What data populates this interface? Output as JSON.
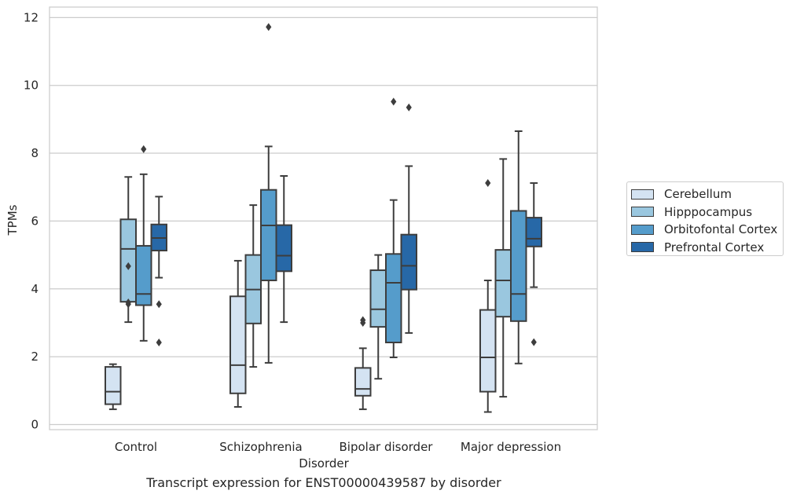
{
  "chart_data": {
    "type": "box",
    "xlabel": "Disorder",
    "ylabel": "TPMs",
    "caption": "Transcript expression for ENST00000439587 by disorder",
    "categories": [
      "Control",
      "Schizophrenia",
      "Bipolar disorder",
      "Major depression"
    ],
    "ylim": [
      -0.15,
      12.3
    ],
    "yticks": [
      0,
      2,
      4,
      6,
      8,
      10,
      12
    ],
    "grid": "horizontal",
    "legend_position": "right",
    "series": [
      {
        "name": "Cerebellum",
        "color": "#d4e3f2",
        "boxes": [
          {
            "min": 0.45,
            "q1": 0.6,
            "median": 0.97,
            "q3": 1.7,
            "max": 1.78,
            "outliers": []
          },
          {
            "min": 0.52,
            "q1": 0.92,
            "median": 1.75,
            "q3": 3.78,
            "max": 4.83,
            "outliers": []
          },
          {
            "min": 0.45,
            "q1": 0.85,
            "median": 1.05,
            "q3": 1.67,
            "max": 2.25,
            "outliers": [
              3.0,
              3.08
            ]
          },
          {
            "min": 0.37,
            "q1": 0.97,
            "median": 1.98,
            "q3": 3.38,
            "max": 4.25,
            "outliers": [
              7.12
            ]
          }
        ]
      },
      {
        "name": "Hipppocampus",
        "color": "#9ac7df",
        "boxes": [
          {
            "min": 3.02,
            "q1": 3.62,
            "median": 5.18,
            "q3": 6.05,
            "max": 7.3,
            "outliers": [
              3.55,
              3.6,
              4.67
            ]
          },
          {
            "min": 1.7,
            "q1": 2.98,
            "median": 3.98,
            "q3": 5.0,
            "max": 6.47,
            "outliers": []
          },
          {
            "min": 1.35,
            "q1": 2.88,
            "median": 3.4,
            "q3": 4.55,
            "max": 5.0,
            "outliers": []
          },
          {
            "min": 0.82,
            "q1": 3.18,
            "median": 4.25,
            "q3": 5.15,
            "max": 7.83,
            "outliers": []
          }
        ]
      },
      {
        "name": "Orbitofontal Cortex",
        "color": "#559ccb",
        "boxes": [
          {
            "min": 2.47,
            "q1": 3.52,
            "median": 3.85,
            "q3": 5.27,
            "max": 7.38,
            "outliers": [
              8.12
            ]
          },
          {
            "min": 1.82,
            "q1": 4.25,
            "median": 5.87,
            "q3": 6.92,
            "max": 8.2,
            "outliers": [
              11.72
            ]
          },
          {
            "min": 1.98,
            "q1": 2.42,
            "median": 4.18,
            "q3": 5.03,
            "max": 6.62,
            "outliers": [
              9.52
            ]
          },
          {
            "min": 1.8,
            "q1": 3.05,
            "median": 3.85,
            "q3": 6.3,
            "max": 8.65,
            "outliers": []
          }
        ]
      },
      {
        "name": "Prefrontal Cortex",
        "color": "#2768a7",
        "boxes": [
          {
            "min": 4.33,
            "q1": 5.13,
            "median": 5.5,
            "q3": 5.9,
            "max": 6.72,
            "outliers": [
              2.42,
              3.55
            ]
          },
          {
            "min": 3.02,
            "q1": 4.52,
            "median": 4.98,
            "q3": 5.88,
            "max": 7.33,
            "outliers": []
          },
          {
            "min": 2.7,
            "q1": 3.98,
            "median": 4.68,
            "q3": 5.6,
            "max": 7.62,
            "outliers": [
              9.35
            ]
          },
          {
            "min": 4.05,
            "q1": 5.25,
            "median": 5.48,
            "q3": 6.1,
            "max": 7.12,
            "outliers": [
              2.43
            ]
          }
        ]
      }
    ]
  }
}
